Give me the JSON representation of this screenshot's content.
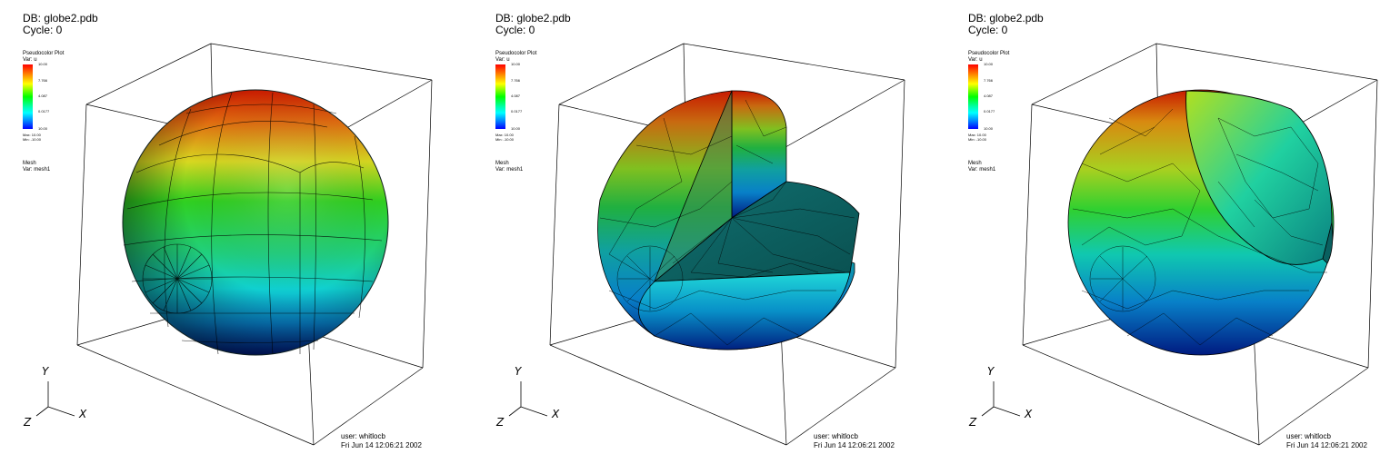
{
  "panels": [
    {
      "db": "DB: globe2.pdb",
      "cycle": "Cycle: 0",
      "legend": {
        "title": "Pseudocolor Plot",
        "var": "Var:  u",
        "ticks": [
          "10.00",
          "7.766",
          "4.087",
          "0.0177",
          "10.00"
        ],
        "max": "Max: 10.00",
        "min": "Min: -10.00"
      },
      "mesh": {
        "title": "Mesh",
        "var": "Var:  mesh1"
      },
      "axes": {
        "y": "Y",
        "z": "Z",
        "x": "X"
      },
      "user": "user: whitlocb",
      "date": "Fri Jun 14 12:06:21 2002"
    },
    {
      "db": "DB: globe2.pdb",
      "cycle": "Cycle: 0",
      "legend": {
        "title": "Pseudocolor Plot",
        "var": "Var:  u",
        "ticks": [
          "10.00",
          "7.766",
          "4.087",
          "0.0177",
          "10.00"
        ],
        "max": "Max: 10.00",
        "min": "Min: -10.00"
      },
      "mesh": {
        "title": "Mesh",
        "var": "Var:  mesh1"
      },
      "axes": {
        "y": "Y",
        "z": "Z",
        "x": "X"
      },
      "user": "user: whitlocb",
      "date": "Fri Jun 14 12:06:21 2002"
    },
    {
      "db": "DB: globe2.pdb",
      "cycle": "Cycle: 0",
      "legend": {
        "title": "Pseudocolor Plot",
        "var": "Var:  u",
        "ticks": [
          "10.00",
          "7.766",
          "4.087",
          "0.0177",
          "10.00"
        ],
        "max": "Max: 10.00",
        "min": "Min: -10.00"
      },
      "mesh": {
        "title": "Mesh",
        "var": "Var:  mesh1"
      },
      "axes": {
        "y": "Y",
        "z": "Z",
        "x": "X"
      },
      "user": "user: whitlocb",
      "date": "Fri Jun 14 12:06:21 2002"
    }
  ],
  "colors": {
    "top": "#d42000",
    "upper": "#f0e000",
    "middle": "#20d020",
    "lower": "#00e0d0",
    "bottom": "#0030b0",
    "box_lines": "#000000"
  }
}
